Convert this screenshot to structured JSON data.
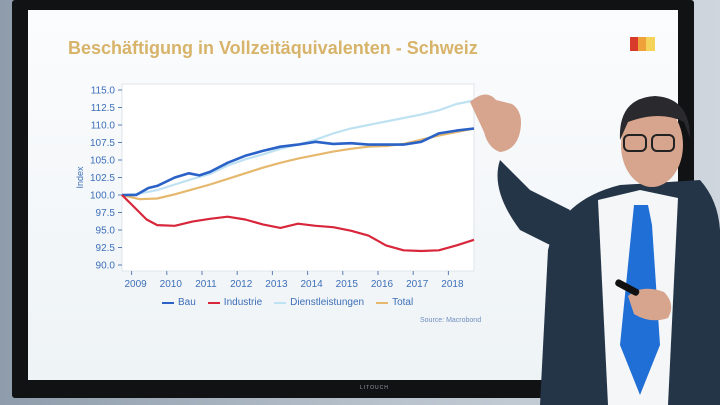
{
  "slide": {
    "title": "Beschäftigung in Vollzeitäquivalenten - Schweiz",
    "source": "Source: Macrobond",
    "monitor_brand": "LITOUCH"
  },
  "colors": {
    "logo": [
      "#d83a2b",
      "#f0a23a",
      "#f5d25a"
    ]
  },
  "chart_data": {
    "type": "line",
    "title": "Beschäftigung in Vollzeitäquivalenten - Schweiz",
    "xlabel": "",
    "ylabel": "Index",
    "x_ticks": [
      "2009",
      "2010",
      "2011",
      "2012",
      "2013",
      "2014",
      "2015",
      "2016",
      "2017",
      "2018"
    ],
    "y_ticks": [
      "115.0",
      "112.5",
      "110.0",
      "107.5",
      "105.0",
      "102.5",
      "100.0",
      "97.5",
      "95.0",
      "92.5",
      "90.0"
    ],
    "ylim": [
      90,
      115
    ],
    "xlim": [
      2008.5,
      2018.5
    ],
    "grid": false,
    "legend": "bottom",
    "series": [
      {
        "name": "Bau",
        "color": "#2a62c7",
        "x": [
          2008.5,
          2008.9,
          2009.25,
          2009.5,
          2010,
          2010.4,
          2010.7,
          2011,
          2011.5,
          2012,
          2012.5,
          2013,
          2013.5,
          2014,
          2014.5,
          2015,
          2015.5,
          2016,
          2016.5,
          2017,
          2017.5,
          2018,
          2018.5
        ],
        "y": [
          100,
          100,
          101,
          101.3,
          102.5,
          103.1,
          102.8,
          103.3,
          104.6,
          105.6,
          106.3,
          106.9,
          107.2,
          107.6,
          107.3,
          107.4,
          107.2,
          107.2,
          107.2,
          107.6,
          108.8,
          109.2,
          109.5
        ]
      },
      {
        "name": "Industrie",
        "color": "#d8263b",
        "x": [
          2008.5,
          2008.8,
          2009.2,
          2009.5,
          2010,
          2010.5,
          2011,
          2011.5,
          2012,
          2012.5,
          2013,
          2013.5,
          2014,
          2014.5,
          2015,
          2015.5,
          2016,
          2016.5,
          2017,
          2017.5,
          2018,
          2018.5
        ],
        "y": [
          100,
          98.5,
          96.5,
          95.7,
          95.6,
          96.2,
          96.6,
          96.9,
          96.5,
          95.8,
          95.3,
          95.9,
          95.6,
          95.4,
          94.9,
          94.2,
          92.8,
          92.1,
          92,
          92.1,
          92.8,
          93.6
        ]
      },
      {
        "name": "Dienstleistungen",
        "color": "#bfe2f2",
        "x": [
          2008.5,
          2009,
          2009.5,
          2010,
          2010.5,
          2011,
          2011.5,
          2012,
          2012.5,
          2013,
          2013.5,
          2014,
          2014.5,
          2015,
          2015.5,
          2016,
          2016.5,
          2017,
          2017.5,
          2018,
          2018.5
        ],
        "y": [
          100,
          100.2,
          100.7,
          101.5,
          102.3,
          103,
          104.2,
          105.1,
          105.8,
          106.6,
          107.2,
          107.9,
          108.8,
          109.5,
          110,
          110.5,
          111,
          111.5,
          112.1,
          113,
          113.5
        ]
      },
      {
        "name": "Total",
        "color": "#e6b86d",
        "x": [
          2008.5,
          2009,
          2009.5,
          2010,
          2010.5,
          2011,
          2011.5,
          2012,
          2012.5,
          2013,
          2013.5,
          2014,
          2014.5,
          2015,
          2015.5,
          2016,
          2016.5,
          2017,
          2017.5,
          2018,
          2018.5
        ],
        "y": [
          100,
          99.4,
          99.5,
          100.1,
          100.8,
          101.5,
          102.3,
          103.1,
          103.9,
          104.6,
          105.2,
          105.7,
          106.2,
          106.6,
          106.9,
          107,
          107.3,
          107.9,
          108.5,
          109,
          109.5
        ]
      }
    ]
  },
  "legend": {
    "items": [
      {
        "label": "Bau",
        "color": "#2a62c7"
      },
      {
        "label": "Industrie",
        "color": "#d8263b"
      },
      {
        "label": "Dienstleistungen",
        "color": "#bfe2f2"
      },
      {
        "label": "Total",
        "color": "#e6b86d"
      }
    ]
  },
  "presenter": {
    "suit": "#253548",
    "shirt": "#f4f6f8",
    "tie": "#1f6fd6",
    "skin": "#d7a48d",
    "hair": "#2a2a2e"
  }
}
